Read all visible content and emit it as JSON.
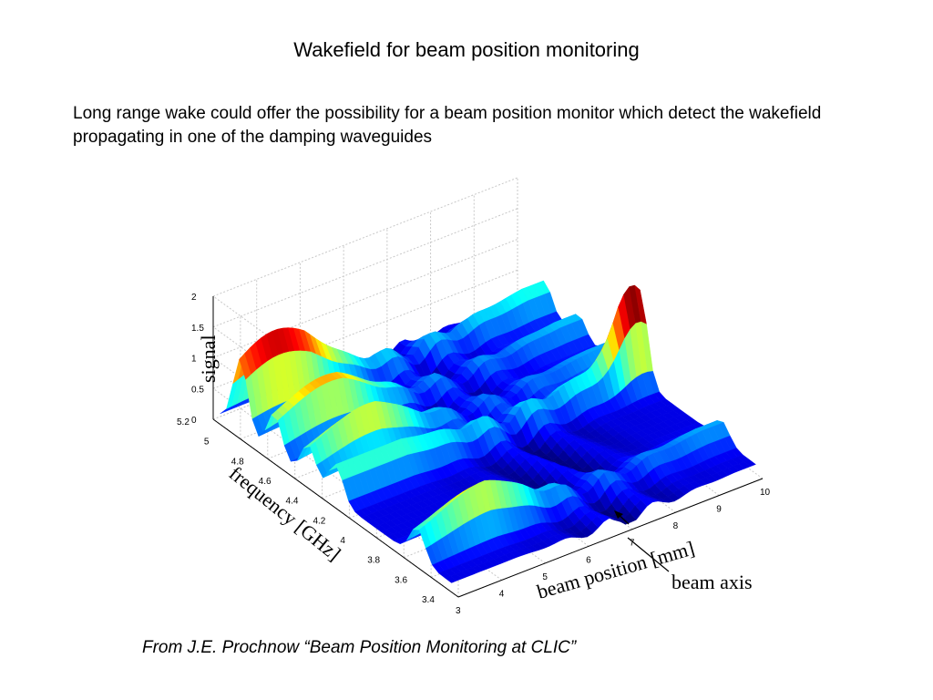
{
  "slide": {
    "title": "Wakefield for beam position monitoring",
    "body": "Long range wake could offer the possibility for a beam position monitor which detect the wakefield propagating in one of the damping waveguides",
    "caption": "From J.E. Prochnow “Beam Position Monitoring at CLIC”"
  },
  "chart_data": {
    "type": "surface",
    "title": "",
    "xlabel": "beam position [mm]",
    "ylabel": "frequency [GHz]",
    "zlabel": "signal",
    "x_ticks": [
      "3",
      "4",
      "5",
      "6",
      "7",
      "8",
      "9",
      "10"
    ],
    "y_ticks": [
      "3.4",
      "3.6",
      "3.8",
      "4",
      "4.2",
      "4.4",
      "4.6",
      "4.8",
      "5",
      "5.2"
    ],
    "z_ticks": [
      "0",
      "0.5",
      "1",
      "1.5",
      "2"
    ],
    "xlim": [
      3,
      10
    ],
    "ylim": [
      3.4,
      5.2
    ],
    "zlim": [
      0,
      2
    ],
    "colormap": "jet",
    "grid": true,
    "annotation": "beam axis",
    "ridges": [
      {
        "frequency": 5.0,
        "peak_position": 3.8,
        "peak_signal": 1.4
      },
      {
        "frequency": 4.75,
        "peak_position": 4.2,
        "peak_signal": 1.0
      },
      {
        "frequency": 4.5,
        "peak_position": 4.3,
        "peak_signal": 0.9
      },
      {
        "frequency": 3.7,
        "peak_position": 4.5,
        "peak_signal": 0.9
      },
      {
        "frequency": 4.3,
        "peak_position": 9.8,
        "peak_signal": 1.6
      }
    ],
    "minimum_position": 7.0
  }
}
